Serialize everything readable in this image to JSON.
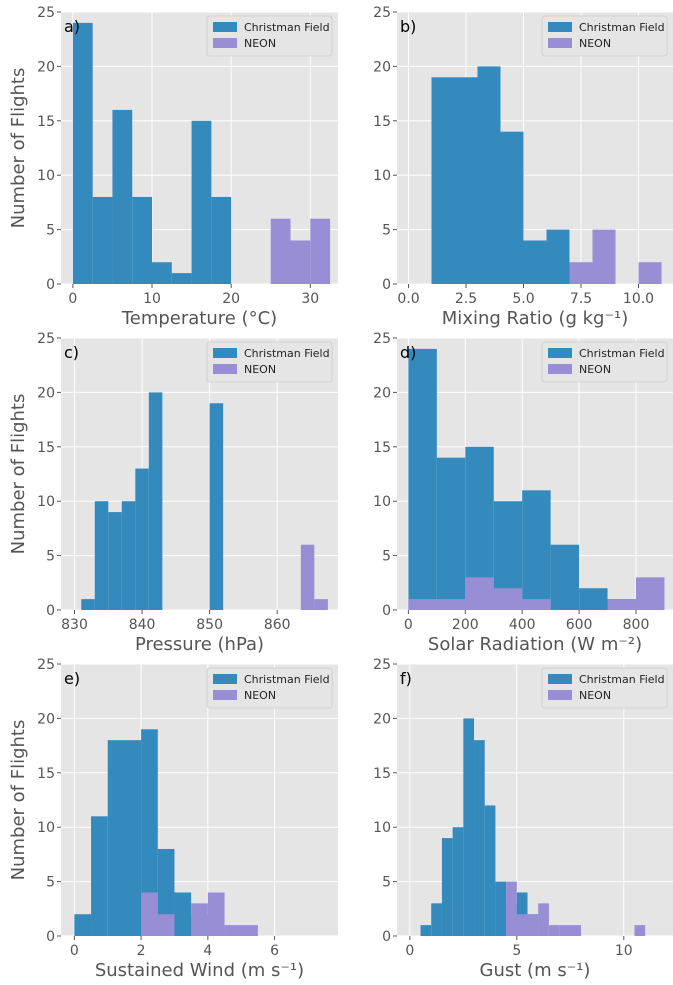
{
  "chart_data": [
    {
      "type": "bar",
      "panel": "a)",
      "xlabel": "Temperature (°C)",
      "ylabel": "Number of Flights",
      "xlim": [
        -1.5,
        33.5
      ],
      "ylim": [
        0,
        25
      ],
      "xticks": [
        0,
        10,
        20,
        30
      ],
      "xtick_labels": [
        "0",
        "10",
        "20",
        "30"
      ],
      "yticks": [
        0,
        5,
        10,
        15,
        20,
        25
      ],
      "grid": true,
      "legend": "top-right",
      "series": [
        {
          "name": "Christman Field",
          "color": "#348ABD",
          "bins": [
            [
              0,
              2.5,
              24
            ],
            [
              2.5,
              5,
              8
            ],
            [
              5,
              7.5,
              16
            ],
            [
              7.5,
              10,
              8
            ],
            [
              10,
              12.5,
              2
            ],
            [
              12.5,
              15,
              1
            ],
            [
              15,
              17.5,
              15
            ],
            [
              17.5,
              20,
              8
            ]
          ]
        },
        {
          "name": "NEON",
          "color": "#988ED5",
          "bins": [
            [
              25,
              27.5,
              6
            ],
            [
              27.5,
              30,
              4
            ],
            [
              30,
              32.5,
              6
            ]
          ]
        }
      ]
    },
    {
      "type": "bar",
      "panel": "b)",
      "xlabel": "Mixing Ratio (g kg⁻¹)",
      "ylabel": "",
      "xlim": [
        -0.5,
        11.5
      ],
      "ylim": [
        0,
        25
      ],
      "xticks": [
        0,
        2.5,
        5,
        7.5,
        10
      ],
      "xtick_labels": [
        "0.0",
        "2.5",
        "5.0",
        "7.5",
        "10.0"
      ],
      "yticks": [
        0,
        5,
        10,
        15,
        20,
        25
      ],
      "grid": true,
      "legend": "top-right",
      "series": [
        {
          "name": "Christman Field",
          "color": "#348ABD",
          "bins": [
            [
              1,
              3,
              19
            ],
            [
              3,
              4,
              20
            ],
            [
              4,
              5,
              14
            ],
            [
              5,
              6,
              4
            ],
            [
              6,
              7,
              5
            ]
          ]
        },
        {
          "name": "NEON",
          "color": "#988ED5",
          "bins": [
            [
              7,
              8,
              2
            ],
            [
              8,
              9,
              5
            ],
            [
              10,
              11,
              2
            ]
          ]
        }
      ]
    },
    {
      "type": "bar",
      "panel": "c)",
      "xlabel": "Pressure (hPa)",
      "ylabel": "Number of Flights",
      "xlim": [
        828,
        869
      ],
      "ylim": [
        0,
        25
      ],
      "xticks": [
        830,
        840,
        850,
        860
      ],
      "xtick_labels": [
        "830",
        "840",
        "850",
        "860"
      ],
      "yticks": [
        0,
        5,
        10,
        15,
        20,
        25
      ],
      "grid": true,
      "legend": "top-right",
      "series": [
        {
          "name": "Christman Field",
          "color": "#348ABD",
          "bins": [
            [
              831,
              833,
              1
            ],
            [
              833,
              835,
              10
            ],
            [
              835,
              837,
              9
            ],
            [
              837,
              839,
              10
            ],
            [
              839,
              841,
              13
            ],
            [
              841,
              843,
              20
            ],
            [
              850,
              852,
              19
            ]
          ]
        },
        {
          "name": "NEON",
          "color": "#988ED5",
          "bins": [
            [
              863.5,
              865.5,
              6
            ],
            [
              865.5,
              867.5,
              1
            ]
          ]
        }
      ]
    },
    {
      "type": "bar",
      "panel": "d)",
      "xlabel": "Solar Radiation (W m⁻²)",
      "ylabel": "",
      "xlim": [
        -40,
        930
      ],
      "ylim": [
        0,
        25
      ],
      "xticks": [
        0,
        200,
        400,
        600,
        800
      ],
      "xtick_labels": [
        "0",
        "200",
        "400",
        "600",
        "800"
      ],
      "yticks": [
        0,
        5,
        10,
        15,
        20,
        25
      ],
      "grid": true,
      "legend": "top-right",
      "series": [
        {
          "name": "Christman Field",
          "color": "#348ABD",
          "bins": [
            [
              0,
              100,
              24
            ],
            [
              100,
              200,
              14
            ],
            [
              200,
              300,
              15
            ],
            [
              300,
              400,
              10
            ],
            [
              400,
              500,
              11
            ],
            [
              500,
              600,
              6
            ],
            [
              600,
              700,
              2
            ],
            [
              700,
              800,
              1
            ]
          ]
        },
        {
          "name": "NEON",
          "color": "#988ED5",
          "bins": [
            [
              0,
              100,
              1
            ],
            [
              100,
              200,
              1
            ],
            [
              200,
              300,
              3
            ],
            [
              300,
              400,
              2
            ],
            [
              400,
              500,
              1
            ],
            [
              700,
              800,
              1
            ],
            [
              800,
              900,
              3
            ]
          ]
        }
      ]
    },
    {
      "type": "bar",
      "panel": "e)",
      "xlabel": "Sustained Wind (m s⁻¹)",
      "ylabel": "Number of Flights",
      "xlim": [
        -0.4,
        7.9
      ],
      "ylim": [
        0,
        25
      ],
      "xticks": [
        0,
        2,
        4,
        6
      ],
      "xtick_labels": [
        "0",
        "2",
        "4",
        "6"
      ],
      "yticks": [
        0,
        5,
        10,
        15,
        20,
        25
      ],
      "grid": true,
      "legend": "top-right",
      "series": [
        {
          "name": "Christman Field",
          "color": "#348ABD",
          "bins": [
            [
              0,
              0.5,
              2
            ],
            [
              0.5,
              1,
              11
            ],
            [
              1,
              2,
              18
            ],
            [
              2,
              2.5,
              19
            ],
            [
              2.5,
              3,
              8
            ],
            [
              3,
              3.5,
              4
            ],
            [
              3.5,
              4,
              2
            ]
          ]
        },
        {
          "name": "NEON",
          "color": "#988ED5",
          "bins": [
            [
              2,
              2.5,
              4
            ],
            [
              2.5,
              3,
              2
            ],
            [
              3.5,
              4,
              3
            ],
            [
              4,
              4.5,
              4
            ],
            [
              4.5,
              5.5,
              1
            ]
          ]
        }
      ]
    },
    {
      "type": "bar",
      "panel": "f)",
      "xlabel": "Gust (m s⁻¹)",
      "ylabel": "",
      "xlim": [
        -0.6,
        12.3
      ],
      "ylim": [
        0,
        25
      ],
      "xticks": [
        0,
        5,
        10
      ],
      "xtick_labels": [
        "0",
        "5",
        "10"
      ],
      "yticks": [
        0,
        5,
        10,
        15,
        20,
        25
      ],
      "grid": true,
      "legend": "top-right",
      "series": [
        {
          "name": "Christman Field",
          "color": "#348ABD",
          "bins": [
            [
              0.5,
              1,
              1
            ],
            [
              1,
              1.5,
              3
            ],
            [
              1.5,
              2,
              9
            ],
            [
              2,
              2.5,
              10
            ],
            [
              2.5,
              3,
              20
            ],
            [
              3,
              3.5,
              18
            ],
            [
              3.5,
              4,
              12
            ],
            [
              4,
              4.5,
              5
            ],
            [
              4.5,
              5,
              3
            ],
            [
              5,
              5.5,
              4
            ],
            [
              5.5,
              6,
              2
            ]
          ]
        },
        {
          "name": "NEON",
          "color": "#988ED5",
          "bins": [
            [
              4.5,
              5,
              5
            ],
            [
              5,
              5.5,
              2
            ],
            [
              5.5,
              6,
              2
            ],
            [
              6,
              6.5,
              3
            ],
            [
              6.5,
              7,
              1
            ],
            [
              7,
              8,
              1
            ],
            [
              10.5,
              11,
              1
            ]
          ]
        }
      ]
    }
  ],
  "colors": {
    "background": "#E5E5E5",
    "grid": "#FFFFFF",
    "tick_text": "#555555"
  }
}
